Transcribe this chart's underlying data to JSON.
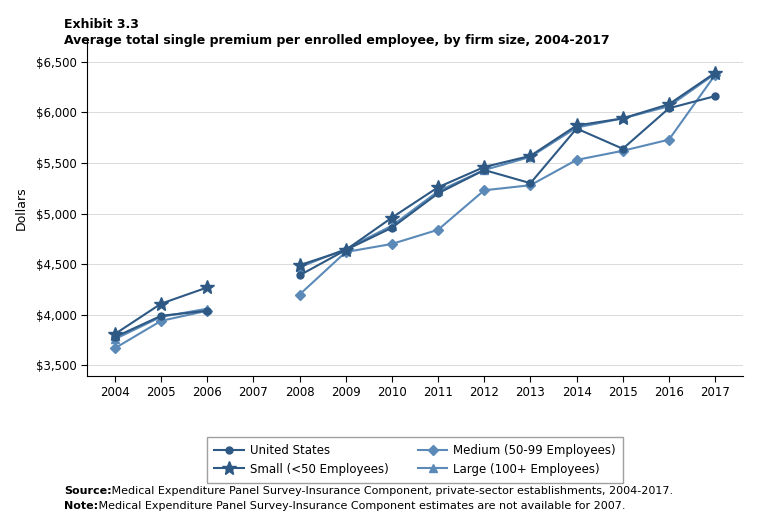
{
  "title_line1": "Exhibit 3.3",
  "title_line2": "Average total single premium per enrolled employee, by firm size, 2004-2017",
  "ylabel": "Dollars",
  "years": [
    2004,
    2005,
    2006,
    2007,
    2008,
    2009,
    2010,
    2011,
    2012,
    2013,
    2014,
    2015,
    2016,
    2017
  ],
  "series": [
    {
      "name": "United States",
      "values": [
        3780,
        3990,
        4040,
        null,
        4390,
        4640,
        4860,
        5200,
        5430,
        5300,
        5840,
        5640,
        6040,
        6160
      ],
      "color": "#2e5984",
      "marker": "o",
      "markersize": 5,
      "linewidth": 1.5,
      "zorder": 3
    },
    {
      "name": "Small (<50 Employees)",
      "values": [
        3810,
        4110,
        4270,
        null,
        4490,
        4640,
        4960,
        5260,
        5460,
        5570,
        5870,
        5940,
        6080,
        6390
      ],
      "color": "#2e5984",
      "marker": "*",
      "markersize": 10,
      "linewidth": 1.5,
      "zorder": 4
    },
    {
      "name": "Medium (50-99 Employees)",
      "values": [
        3670,
        3940,
        4040,
        null,
        4200,
        4620,
        4700,
        4840,
        5230,
        5280,
        5530,
        5620,
        5730,
        6370
      ],
      "color": "#5b8ab8",
      "marker": "D",
      "markersize": 5,
      "linewidth": 1.5,
      "zorder": 2
    },
    {
      "name": "Large (100+ Employees)",
      "values": [
        3760,
        3980,
        4060,
        null,
        4470,
        4650,
        4880,
        5220,
        5430,
        5560,
        5850,
        5940,
        6060,
        6380
      ],
      "color": "#5b8ab8",
      "marker": "^",
      "markersize": 6,
      "linewidth": 1.5,
      "zorder": 2
    }
  ],
  "ylim": [
    3400,
    6700
  ],
  "yticks": [
    3500,
    4000,
    4500,
    5000,
    5500,
    6000,
    6500
  ],
  "source_bold": "Source:",
  "source_rest": " Medical Expenditure Panel Survey-Insurance Component, private-sector establishments, 2004-2017.",
  "note_bold": "Note:",
  "note_rest": " Medical Expenditure Panel Survey-Insurance Component estimates are not available for 2007.",
  "legend_ncol": 2
}
